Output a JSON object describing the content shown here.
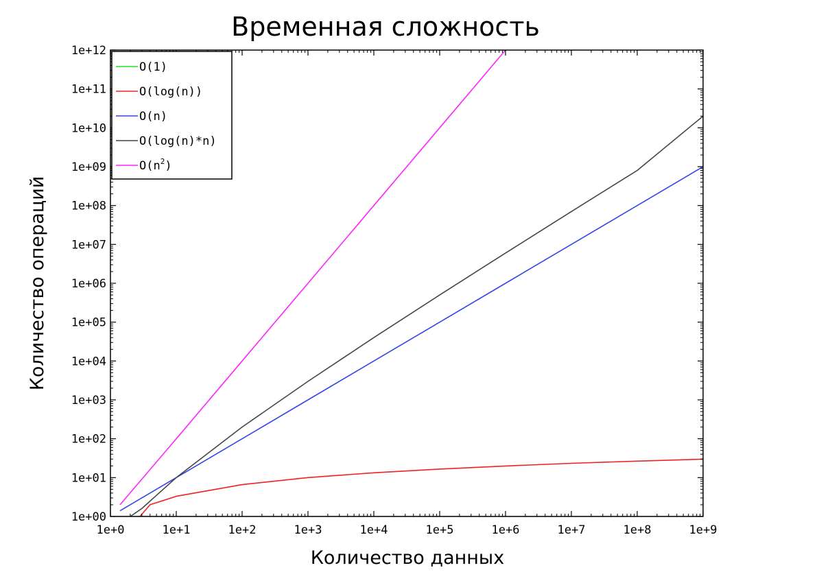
{
  "chart_data": {
    "type": "line",
    "title": "Временная сложность",
    "xlabel": "Количество данных",
    "ylabel": "Количество операций",
    "x_scale": "log",
    "y_scale": "log",
    "xlim": [
      1,
      1000000000
    ],
    "ylim": [
      1,
      1000000000000
    ],
    "grid": false,
    "legend_position": "top-left",
    "x_ticks": [
      1,
      10,
      100,
      1000,
      10000,
      100000,
      1000000,
      10000000,
      100000000,
      1000000000
    ],
    "x_tick_labels": [
      "1e+0",
      "1e+1",
      "1e+2",
      "1e+3",
      "1e+4",
      "1e+5",
      "1e+6",
      "1e+7",
      "1e+8",
      "1e+9"
    ],
    "y_ticks": [
      1,
      10,
      100,
      1000,
      10000,
      100000,
      1000000,
      10000000,
      100000000,
      1000000000,
      10000000000,
      100000000000,
      1000000000000
    ],
    "y_tick_labels": [
      "1e+00",
      "1e+01",
      "1e+02",
      "1e+03",
      "1e+04",
      "1e+05",
      "1e+06",
      "1e+07",
      "1e+08",
      "1e+09",
      "1e+10",
      "1e+11",
      "1e+12"
    ],
    "series": [
      {
        "name": "O(1)",
        "color": "#22dd22",
        "x": [
          1,
          10,
          100,
          1000,
          10000,
          100000,
          1000000,
          10000000,
          100000000,
          1000000000
        ],
        "y": [
          1,
          1,
          1,
          1,
          1,
          1,
          1,
          1,
          1,
          1
        ]
      },
      {
        "name": "O(log(n))",
        "color": "#ee2222",
        "x": [
          2.8,
          4,
          10,
          100,
          1000,
          10000,
          100000,
          1000000,
          10000000,
          100000000,
          1000000000
        ],
        "y": [
          1,
          2,
          3.3,
          6.6,
          10,
          13.3,
          16.6,
          19.9,
          23.3,
          26.6,
          29.9
        ]
      },
      {
        "name": "O(n)",
        "color": "#3344ee",
        "x": [
          1.4,
          10,
          100,
          1000,
          10000,
          100000,
          1000000,
          10000000,
          100000000,
          1000000000
        ],
        "y": [
          1.4,
          10,
          100,
          1000,
          10000,
          100000,
          1000000,
          10000000,
          100000000,
          1000000000
        ]
      },
      {
        "name": "O(log(n)*n)",
        "color": "#444444",
        "x": [
          2,
          3,
          5,
          10,
          100,
          1000,
          10000,
          100000,
          1000000,
          10000000,
          100000000,
          1000000000
        ],
        "y": [
          1,
          1.6,
          3.5,
          10,
          200,
          3000,
          40000,
          500000,
          6000000,
          70000000,
          800000000,
          20000000000
        ]
      },
      {
        "name_base": "O(n",
        "name_sup": "2",
        "name_tail": ")",
        "color": "#ff22ff",
        "x": [
          1.4,
          10,
          100,
          1000,
          10000,
          100000,
          1000000
        ],
        "y": [
          2,
          100,
          10000,
          1000000,
          100000000,
          10000000000,
          1000000000000
        ]
      }
    ]
  }
}
